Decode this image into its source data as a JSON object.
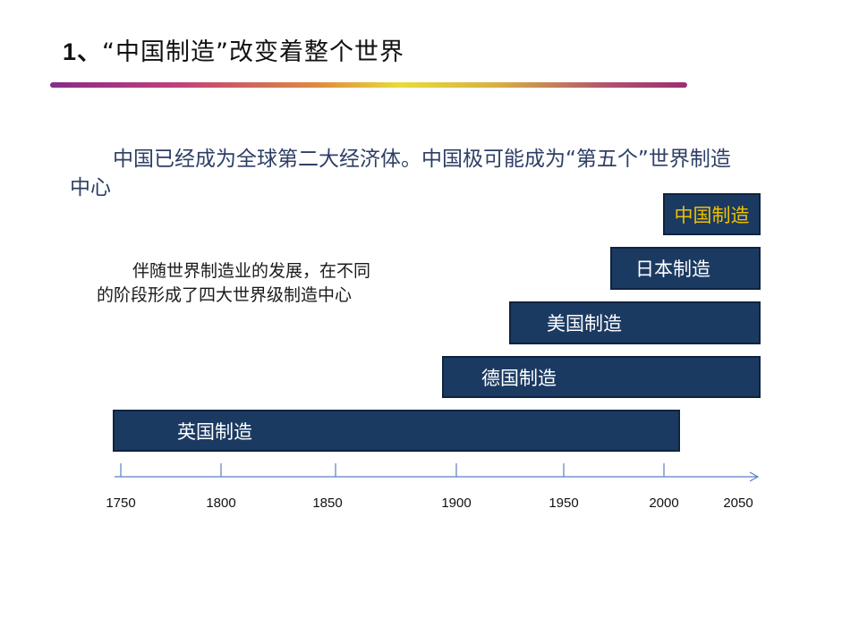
{
  "header": {
    "title_num": "1、",
    "title_text": "“中国制造”改变着整个世界"
  },
  "intro": {
    "text": "中国已经成为全球第二大经济体。中国极可能成为“第五个”世界制造中心"
  },
  "note": {
    "text": "伴随世界制造业的发展，在不同的阶段形成了四大世界级制造中心"
  },
  "timeline": {
    "bars": [
      {
        "label": "中国制造",
        "highlight": true
      },
      {
        "label": "日本制造",
        "highlight": false
      },
      {
        "label": "美国制造",
        "highlight": false
      },
      {
        "label": "德国制造",
        "highlight": false
      },
      {
        "label": "英国制造",
        "highlight": false
      }
    ],
    "ticks": [
      "1750",
      "1800",
      "1850",
      "1900",
      "1950",
      "2000",
      "2050"
    ]
  },
  "colors": {
    "bar_fill": "#1b3a62",
    "highlight_text": "#f0c000",
    "axis": "#5b7fc0"
  }
}
